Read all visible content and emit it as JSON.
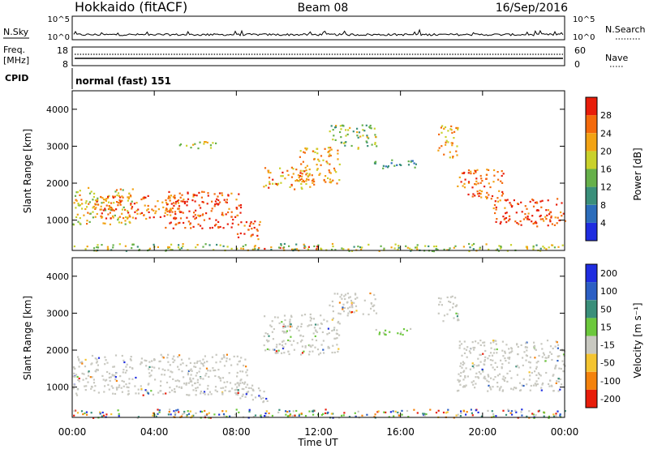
{
  "header": {
    "station": "Hokkaido (fitACF)",
    "beam": "Beam 08",
    "date": "16/Sep/2016"
  },
  "noise_panel": {
    "left_label": "N.Sky",
    "right_label": "N.Search",
    "left_ticks": [
      "10^5",
      "10^0"
    ],
    "right_ticks": [
      "10^5",
      "10^0"
    ]
  },
  "freq_panel": {
    "left_label": "Freq.",
    "left_unit": "[MHz]",
    "right_label": "Nave",
    "left_ticks": [
      "18",
      "8"
    ],
    "right_ticks": [
      "60",
      "0"
    ]
  },
  "cpid": {
    "label": "CPID",
    "value": "normal (fast) 151"
  },
  "chart_data": [
    {
      "type": "heatmap",
      "parameter": "Power",
      "ylabel": "Slant Range [km]",
      "ylim": [
        180,
        4500
      ],
      "yticks": [
        "1000",
        "2000",
        "3000",
        "4000"
      ],
      "xlim_hours": [
        0,
        24
      ],
      "colorbar_label": "Power [dB]",
      "colorbar_ticks": [
        "4",
        "8",
        "12",
        "16",
        "20",
        "24",
        "28"
      ],
      "colorbar_range": [
        0,
        32
      ],
      "colors": [
        "#1f2de0",
        "#2c6dbb",
        "#3a8f7a",
        "#66b04a",
        "#c9d12b",
        "#f2a314",
        "#f46a0c",
        "#e81d0a"
      ],
      "echo_regions": [
        {
          "t0": 0.0,
          "t1": 3.0,
          "r0": 900,
          "r1": 1900,
          "power": 20
        },
        {
          "t0": 1.0,
          "t1": 5.5,
          "r0": 1050,
          "r1": 1700,
          "power": 26
        },
        {
          "t0": 4.5,
          "t1": 8.2,
          "r0": 800,
          "r1": 1800,
          "power": 29
        },
        {
          "t0": 8.0,
          "t1": 9.2,
          "r0": 500,
          "r1": 1000,
          "power": 27
        },
        {
          "t0": 9.0,
          "t1": 12.3,
          "r0": 220,
          "r1": 320,
          "power": 30
        },
        {
          "t0": 9.3,
          "t1": 11.8,
          "r0": 1850,
          "r1": 2450,
          "power": 24
        },
        {
          "t0": 11.0,
          "t1": 13.0,
          "r0": 2000,
          "r1": 3000,
          "power": 22
        },
        {
          "t0": 12.5,
          "t1": 14.8,
          "r0": 2950,
          "r1": 3600,
          "power": 15
        },
        {
          "t0": 14.5,
          "t1": 16.8,
          "r0": 2400,
          "r1": 2650,
          "power": 11
        },
        {
          "t0": 5.0,
          "t1": 7.0,
          "r0": 2950,
          "r1": 3150,
          "power": 18
        },
        {
          "t0": 17.8,
          "t1": 18.8,
          "r0": 2700,
          "r1": 3600,
          "power": 22
        },
        {
          "t0": 18.7,
          "t1": 21.0,
          "r0": 1600,
          "r1": 2400,
          "power": 26
        },
        {
          "t0": 20.5,
          "t1": 24.0,
          "r0": 850,
          "r1": 1600,
          "power": 29
        },
        {
          "t0": 0.0,
          "t1": 24.0,
          "r0": 180,
          "r1": 380,
          "power": 16
        }
      ]
    },
    {
      "type": "heatmap",
      "parameter": "Velocity",
      "ylabel": "Slant Range [km]",
      "ylim": [
        180,
        4500
      ],
      "yticks": [
        "1000",
        "2000",
        "3000",
        "4000"
      ],
      "xlim_hours": [
        0,
        24
      ],
      "xticks": [
        "00:00",
        "04:00",
        "08:00",
        "12:00",
        "16:00",
        "20:00",
        "00:00"
      ],
      "xlabel": "Time UT",
      "colorbar_label": "Velocity [m s⁻¹]",
      "colorbar_ticks": [
        "200",
        "100",
        "50",
        "15",
        "-15",
        "-50",
        "-100",
        "-200"
      ],
      "colors": [
        "#1f2de0",
        "#2c5fc4",
        "#3a8f7a",
        "#6cc83c",
        "#c8c8c0",
        "#f4c430",
        "#f4820c",
        "#e81d0a"
      ],
      "echo_regions": [
        {
          "t0": 0.0,
          "t1": 8.5,
          "r0": 800,
          "r1": 1900,
          "kind": "ground"
        },
        {
          "t0": 8.0,
          "t1": 9.5,
          "r0": 600,
          "r1": 1100,
          "kind": "ground"
        },
        {
          "t0": 9.0,
          "t1": 12.5,
          "r0": 220,
          "r1": 320,
          "kind": "positive"
        },
        {
          "t0": 9.3,
          "t1": 13.0,
          "r0": 1900,
          "r1": 3000,
          "kind": "ground"
        },
        {
          "t0": 12.5,
          "t1": 14.8,
          "r0": 2950,
          "r1": 3600,
          "kind": "ground"
        },
        {
          "t0": 14.5,
          "t1": 16.5,
          "r0": 2400,
          "r1": 2600,
          "kind": "positive"
        },
        {
          "t0": 17.8,
          "t1": 18.8,
          "r0": 2800,
          "r1": 3500,
          "kind": "ground"
        },
        {
          "t0": 18.7,
          "t1": 24.0,
          "r0": 900,
          "r1": 2300,
          "kind": "ground"
        },
        {
          "t0": 0.0,
          "t1": 24.0,
          "r0": 180,
          "r1": 420,
          "kind": "mixed"
        }
      ]
    }
  ]
}
